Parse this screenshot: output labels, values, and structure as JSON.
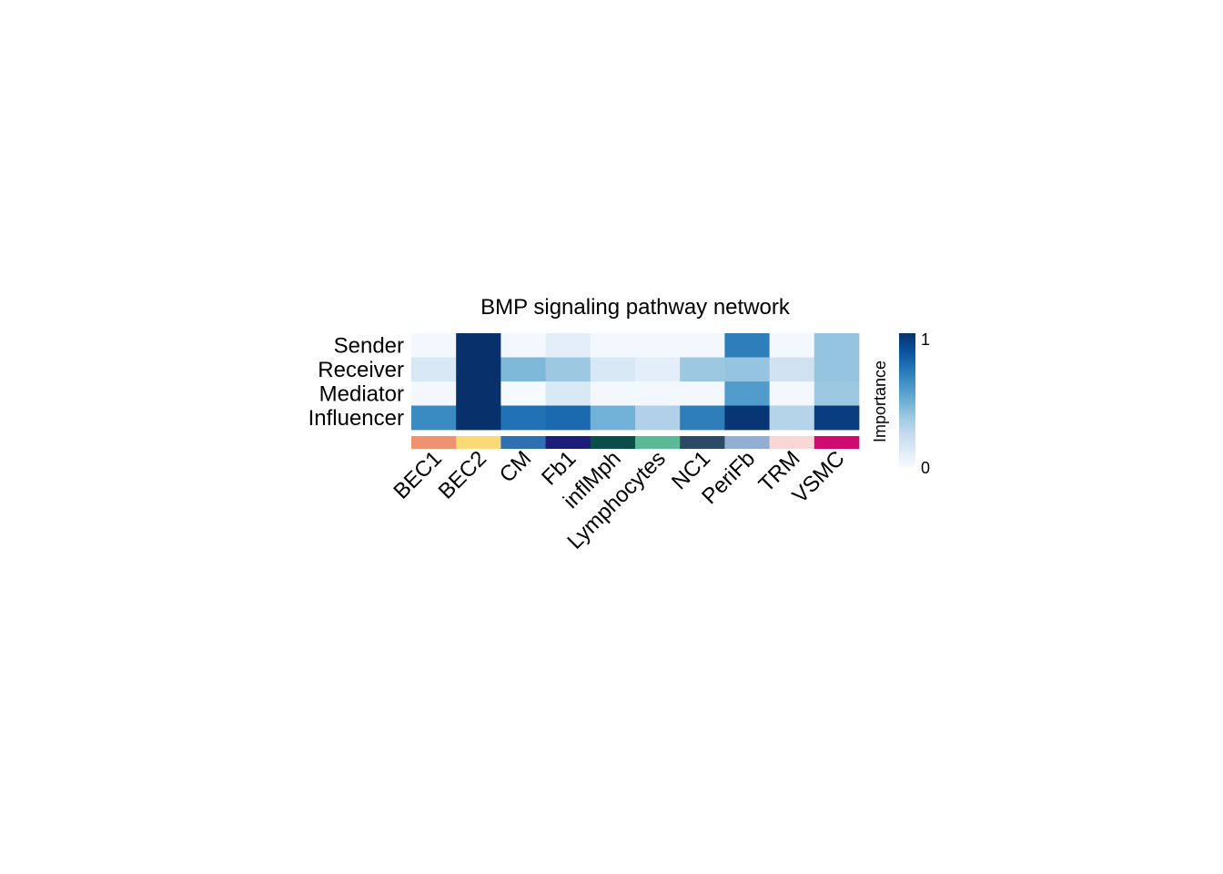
{
  "chart_data": {
    "type": "heatmap",
    "title": "BMP signaling pathway network",
    "rows": [
      "Sender",
      "Receiver",
      "Mediator",
      "Influencer"
    ],
    "columns": [
      "BEC1",
      "BEC2",
      "CM",
      "Fb1",
      "inflMph",
      "Lymphocytes",
      "NC1",
      "PeriFb",
      "TRM",
      "VSMC"
    ],
    "values": [
      [
        0.02,
        1.0,
        0.02,
        0.1,
        0.02,
        0.02,
        0.02,
        0.7,
        0.02,
        0.4
      ],
      [
        0.15,
        1.0,
        0.45,
        0.38,
        0.15,
        0.1,
        0.38,
        0.4,
        0.2,
        0.4
      ],
      [
        0.02,
        1.0,
        0.01,
        0.15,
        0.02,
        0.02,
        0.02,
        0.58,
        0.02,
        0.38
      ],
      [
        0.65,
        1.0,
        0.75,
        0.78,
        0.48,
        0.32,
        0.7,
        0.98,
        0.3,
        0.95
      ]
    ],
    "column_colors": [
      "#EF9270",
      "#FAD977",
      "#2F70B3",
      "#1D1E79",
      "#0B4D48",
      "#5AB997",
      "#2C4966",
      "#93AED3",
      "#F8D8D6",
      "#CF0C6E"
    ],
    "colorbar": {
      "title": "Importance",
      "range": [
        0,
        1
      ],
      "ticks": [
        "1",
        "0"
      ],
      "low_color": "#F7FBFF",
      "high_color": "#08306B"
    },
    "legend_placement": "right"
  }
}
